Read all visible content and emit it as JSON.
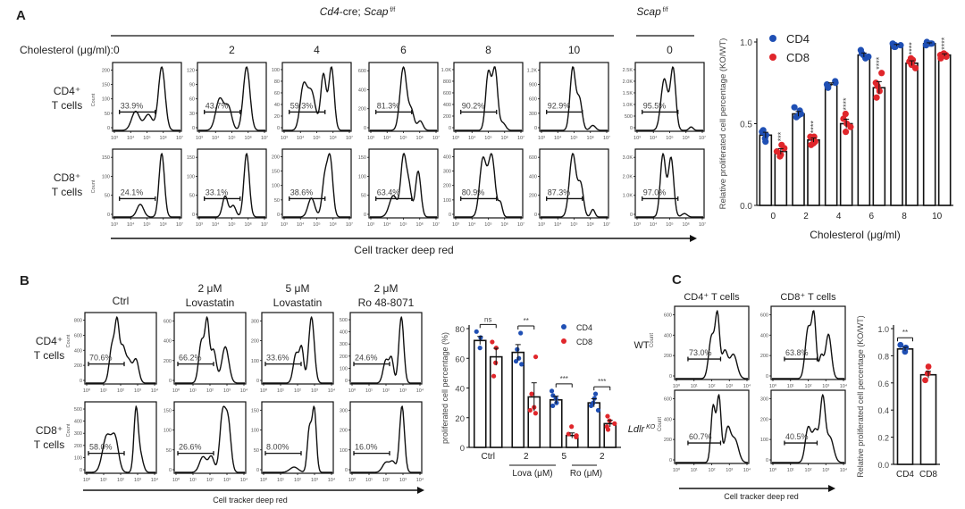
{
  "panels": {
    "A": {
      "label": "A",
      "genotype_group_1": "Cd4-cre; Scap f/f",
      "genotype_group_1_parts": {
        "gene_italic": "Cd4",
        "rest": "-cre; ",
        "scap": "Scap",
        "sup": "f/f"
      },
      "genotype_group_2_parts": {
        "scap": "Scap",
        "sup": "f/f"
      },
      "row_header_prefix": "Cholesterol (μg/ml):",
      "row_labels": [
        [
          "CD4⁺",
          "T cells"
        ],
        [
          "CD8⁺",
          "T cells"
        ]
      ],
      "count_label": "Count",
      "x_axis_label": "Cell tracker deep red",
      "x_ticks": [
        "10³",
        "10⁴",
        "10⁵",
        "10⁶",
        "10⁷"
      ],
      "columns": [
        {
          "cholesterol": "0",
          "group": 1,
          "cd4": {
            "gate_pct": "33.9%",
            "yticks": [
              "0",
              "50",
              "100",
              "150",
              "200"
            ]
          },
          "cd8": {
            "gate_pct": "24.1%",
            "yticks": [
              "0",
              "50",
              "100",
              "150"
            ]
          }
        },
        {
          "cholesterol": "2",
          "group": 1,
          "cd4": {
            "gate_pct": "43.7%",
            "yticks": [
              "0",
              "30",
              "60",
              "90",
              "120"
            ]
          },
          "cd8": {
            "gate_pct": "33.1%",
            "yticks": [
              "0",
              "50",
              "100",
              "150"
            ]
          }
        },
        {
          "cholesterol": "4",
          "group": 1,
          "cd4": {
            "gate_pct": "59.3%",
            "yticks": [
              "0",
              "20",
              "40",
              "60",
              "80",
              "100"
            ]
          },
          "cd8": {
            "gate_pct": "38.6%",
            "yticks": [
              "0",
              "50",
              "100",
              "150",
              "200"
            ]
          }
        },
        {
          "cholesterol": "6",
          "group": 1,
          "cd4": {
            "gate_pct": "81.3%",
            "yticks": [
              "0",
              "200",
              "400",
              "600"
            ]
          },
          "cd8": {
            "gate_pct": "63.4%",
            "yticks": [
              "0",
              "50",
              "100",
              "150"
            ]
          }
        },
        {
          "cholesterol": "8",
          "group": 1,
          "cd4": {
            "gate_pct": "90.2%",
            "yticks": [
              "0",
              "200",
              "400",
              "600",
              "800",
              "1.0K"
            ]
          },
          "cd8": {
            "gate_pct": "80.9%",
            "yticks": [
              "0",
              "100",
              "200",
              "300",
              "400"
            ]
          }
        },
        {
          "cholesterol": "10",
          "group": 1,
          "cd4": {
            "gate_pct": "92.9%",
            "yticks": [
              "0",
              "300",
              "600",
              "900",
              "1.2K"
            ]
          },
          "cd8": {
            "gate_pct": "87.3%",
            "yticks": [
              "0",
              "200",
              "400",
              "600"
            ]
          }
        },
        {
          "cholesterol": "0",
          "group": 2,
          "cd4": {
            "gate_pct": "95.5%",
            "yticks": [
              "0",
              "500",
              "1.0K",
              "1.5K",
              "2.0K",
              "2.5K"
            ]
          },
          "cd8": {
            "gate_pct": "97.0%",
            "yticks": [
              "0",
              "1.0K",
              "2.0K",
              "3.0K"
            ]
          }
        }
      ]
    },
    "B": {
      "label": "B",
      "conditions": [
        [
          "Ctrl"
        ],
        [
          "2 μM",
          "Lovastatin"
        ],
        [
          "5 μM",
          "Lovastatin"
        ],
        [
          "2 μM",
          "Ro 48-8071"
        ]
      ],
      "row_labels": [
        [
          "CD4⁺",
          "T cells"
        ],
        [
          "CD8⁺",
          "T cells"
        ]
      ],
      "count_label": "Count",
      "x_axis_label": "Cell tracker deep red",
      "x_ticks": [
        "10⁰",
        "10¹",
        "10²",
        "10³",
        "10⁴"
      ],
      "cd4": [
        {
          "gate_pct": "70.6%",
          "yticks": [
            "0",
            "200",
            "400",
            "600",
            "800"
          ]
        },
        {
          "gate_pct": "66.2%",
          "yticks": [
            "0",
            "200",
            "400",
            "600"
          ]
        },
        {
          "gate_pct": "33.6%",
          "yticks": [
            "0",
            "100",
            "200",
            "300"
          ]
        },
        {
          "gate_pct": "24.6%",
          "yticks": [
            "0",
            "100",
            "200",
            "300",
            "400",
            "500"
          ]
        }
      ],
      "cd8": [
        {
          "gate_pct": "58.0%",
          "yticks": [
            "0",
            "100",
            "200",
            "300",
            "400",
            "500"
          ]
        },
        {
          "gate_pct": "26.6%",
          "yticks": [
            "0",
            "50",
            "100",
            "150"
          ]
        },
        {
          "gate_pct": "8.00%",
          "yticks": [
            "0",
            "50",
            "100",
            "150"
          ]
        },
        {
          "gate_pct": "16.0%",
          "yticks": [
            "0",
            "100",
            "200",
            "300"
          ]
        }
      ]
    },
    "C": {
      "label": "C",
      "column_headers": [
        "CD4⁺ T cells",
        "CD8⁺ T cells"
      ],
      "row_labels": [
        "WT",
        "Ldlr KO"
      ],
      "row_label_parts": [
        {
          "main": "WT",
          "sup": ""
        },
        {
          "main": "Ldlr",
          "sup": "KO"
        }
      ],
      "count_label": "Count",
      "x_axis_label": "Cell tracker deep red",
      "x_ticks": [
        "10⁰",
        "10¹",
        "10²",
        "10³",
        "10⁴"
      ],
      "wt": [
        {
          "gate_pct": "73.0%",
          "yticks": [
            "0",
            "200",
            "400",
            "600"
          ]
        },
        {
          "gate_pct": "63.8%",
          "yticks": [
            "0",
            "200",
            "400",
            "600"
          ]
        }
      ],
      "ko": [
        {
          "gate_pct": "60.7%",
          "yticks": [
            "0",
            "200",
            "400",
            "600"
          ]
        },
        {
          "gate_pct": "40.5%",
          "yticks": [
            "0",
            "100",
            "200",
            "300"
          ]
        }
      ]
    }
  },
  "colors": {
    "cd4": "#1f4fb4",
    "cd8": "#e0262b",
    "line": "#111111",
    "text": "#222222",
    "tick_text": "#555555"
  },
  "chart_data": [
    {
      "id": "A-bar",
      "type": "bar",
      "title": "",
      "xlabel": "Cholesterol (μg/ml)",
      "ylabel": "Relative proliferated cell percentage (KO/WT)",
      "ylim": [
        0,
        1.0
      ],
      "yticks": [
        "0.0",
        "0.5",
        "1.0"
      ],
      "categories": [
        "0",
        "2",
        "4",
        "6",
        "8",
        "10"
      ],
      "legend": [
        "CD4",
        "CD8"
      ],
      "legend_position": "top-left",
      "series": [
        {
          "name": "CD4",
          "values": [
            0.43,
            0.56,
            0.74,
            0.92,
            0.98,
            0.99
          ],
          "points": [
            [
              0.39,
              0.43,
              0.45,
              0.46,
              0.41
            ],
            [
              0.54,
              0.56,
              0.58,
              0.6,
              0.55
            ],
            [
              0.72,
              0.74,
              0.76,
              0.75,
              0.73
            ],
            [
              0.9,
              0.93,
              0.95,
              0.91,
              0.92
            ],
            [
              0.97,
              0.98,
              0.99,
              0.98,
              0.97
            ],
            [
              0.99,
              0.99,
              0.98,
              1.0,
              0.99
            ]
          ]
        },
        {
          "name": "CD8",
          "values": [
            0.33,
            0.4,
            0.5,
            0.72,
            0.87,
            0.92
          ],
          "points": [
            [
              0.31,
              0.33,
              0.35,
              0.37,
              0.3
            ],
            [
              0.37,
              0.39,
              0.42,
              0.42,
              0.38
            ],
            [
              0.45,
              0.48,
              0.53,
              0.56,
              0.5
            ],
            [
              0.66,
              0.7,
              0.73,
              0.75,
              0.81
            ],
            [
              0.84,
              0.86,
              0.88,
              0.89,
              0.9
            ],
            [
              0.9,
              0.92,
              0.93,
              0.91,
              0.92
            ]
          ]
        }
      ],
      "significance": [
        "***",
        "****",
        "****",
        "****",
        "****",
        "****"
      ]
    },
    {
      "id": "B-bar",
      "type": "bar",
      "title": "",
      "xlabel": "",
      "x_group_labels": [
        "Lova (μM)",
        "Ro (μM)"
      ],
      "ylabel": "proliferated cell percentage (%)",
      "ylim": [
        0,
        80
      ],
      "yticks": [
        "0",
        "20",
        "40",
        "60",
        "80"
      ],
      "categories": [
        "Ctrl",
        "2",
        "5",
        "2"
      ],
      "legend": [
        "CD4",
        "CD8"
      ],
      "legend_position": "top-right",
      "series": [
        {
          "name": "CD4",
          "values": [
            72,
            64,
            32,
            30
          ],
          "points": [
            [
              67,
              74,
              78
            ],
            [
              56,
              60,
              66,
              58,
              77
            ],
            [
              28,
              30,
              33,
              35,
              38
            ],
            [
              25,
              28,
              30,
              33,
              36
            ]
          ]
        },
        {
          "name": "CD8",
          "values": [
            61,
            34,
            8,
            16
          ],
          "points": [
            [
              48,
              57,
              67,
              71
            ],
            [
              23,
              25,
              27,
              36,
              61
            ],
            [
              7,
              8,
              9,
              14
            ],
            [
              12,
              14,
              16,
              18,
              21
            ]
          ]
        }
      ],
      "significance": [
        "ns",
        "**",
        "***",
        "***"
      ]
    },
    {
      "id": "C-bar",
      "type": "bar",
      "title": "",
      "xlabel": "",
      "ylabel": "Relative proliferated cell percentage (KO/WT)",
      "ylim": [
        0,
        1.0
      ],
      "yticks": [
        "0.0",
        "0.2",
        "0.4",
        "0.6",
        "0.8",
        "1.0"
      ],
      "categories": [
        "CD4",
        "CD8"
      ],
      "series": [
        {
          "name": "value",
          "values": [
            0.85,
            0.66
          ],
          "points": [
            [
              0.83,
              0.86,
              0.88
            ],
            [
              0.62,
              0.67,
              0.72
            ]
          ]
        }
      ],
      "significance": [
        "**"
      ]
    }
  ]
}
